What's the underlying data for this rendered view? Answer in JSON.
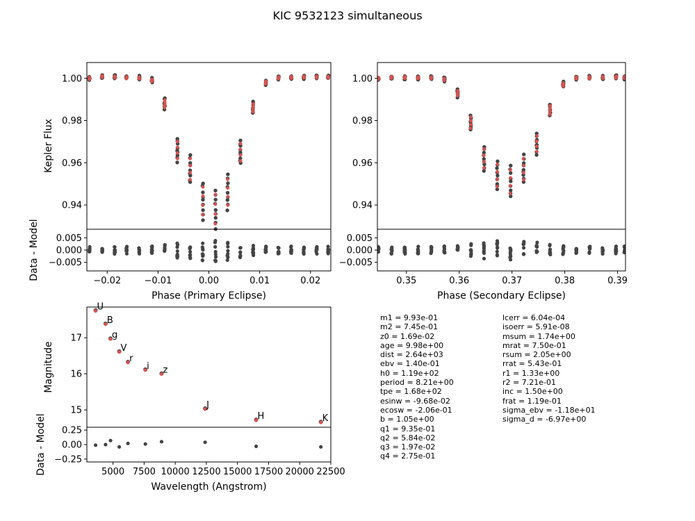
{
  "figure": {
    "title": "KIC 9532123 simultaneous"
  },
  "colors": {
    "data": "#444444",
    "model": "#d9534f",
    "axis": "#000000"
  },
  "chart_data": [
    {
      "id": "primary",
      "type": "scatter",
      "title": "",
      "xlabel": "Phase (Primary Eclipse)",
      "ylabel": "Kepler Flux",
      "resid_ylabel": "Data - Model",
      "xlim": [
        -0.024,
        0.024
      ],
      "ylim": [
        0.9285,
        1.0075
      ],
      "resid_ylim": [
        -0.0085,
        0.0085
      ],
      "xticks": [
        -0.02,
        -0.01,
        0.0,
        0.01,
        0.02
      ],
      "xtick_labels": [
        "−0.02",
        "−0.01",
        "0.00",
        "0.01",
        "0.02"
      ],
      "yticks": [
        0.94,
        0.96,
        0.98,
        1.0
      ],
      "ytick_labels": [
        "0.94",
        "0.96",
        "0.98",
        "1.00"
      ],
      "resid_yticks": [
        -0.005,
        0.0,
        0.005
      ],
      "resid_ytick_labels": [
        "−0.005",
        "0.000",
        "0.005"
      ],
      "series": [
        {
          "values_x": [
            -0.0235,
            -0.021,
            -0.0185,
            -0.0162,
            -0.0137,
            -0.0112,
            -0.0087,
            -0.0062,
            -0.0037,
            -0.0012,
            0.0013,
            0.0037,
            0.0062,
            0.0087,
            0.0112,
            0.0137,
            0.0162,
            0.0187,
            0.0212,
            0.0235
          ],
          "values_y": [
            1.0,
            1.0008,
            1.0006,
            1.0003,
            1.0002,
            0.999,
            0.988,
            0.966,
            0.957,
            0.942,
            0.938,
            0.946,
            0.965,
            0.986,
            0.998,
            1.0002,
            1.0004,
            1.0006,
            1.0006,
            1.0006
          ]
        }
      ]
    },
    {
      "id": "secondary",
      "type": "scatter",
      "title": "",
      "xlabel": "Phase (Secondary Eclipse)",
      "ylabel": "",
      "resid_ylabel": "",
      "xlim": [
        0.3445,
        0.3915
      ],
      "ylim": [
        0.9285,
        1.0075
      ],
      "resid_ylim": [
        -0.0085,
        0.0085
      ],
      "xticks": [
        0.35,
        0.36,
        0.37,
        0.38,
        0.39
      ],
      "xtick_labels": [
        "0.35",
        "0.36",
        "0.37",
        "0.38",
        "0.39"
      ],
      "yticks": [
        0.94,
        0.96,
        0.98,
        1.0
      ],
      "ytick_labels": [
        "0.94",
        "0.96",
        "0.98",
        "1.00"
      ],
      "resid_yticks": [
        -0.005,
        0.0,
        0.005
      ],
      "resid_ytick_labels": [
        "−0.005",
        "0.000",
        "0.005"
      ],
      "series": [
        {
          "values_x": [
            0.3447,
            0.3472,
            0.3497,
            0.3522,
            0.3547,
            0.3572,
            0.3597,
            0.3622,
            0.3647,
            0.3672,
            0.3697,
            0.3722,
            0.3747,
            0.3772,
            0.3797,
            0.3822,
            0.3847,
            0.3872,
            0.3897,
            0.3913
          ],
          "values_y": [
            1.0,
            1.0004,
            1.0004,
            1.0003,
            1.0002,
            0.9995,
            0.993,
            0.979,
            0.962,
            0.954,
            0.951,
            0.957,
            0.969,
            0.985,
            0.997,
            1.0002,
            1.0003,
            1.0004,
            1.0006,
            1.0004
          ]
        }
      ]
    },
    {
      "id": "sed",
      "type": "scatter",
      "title": "",
      "xlabel": "Wavelength (Angstrom)",
      "ylabel": "Magnitude",
      "resid_ylabel": "Data - Model",
      "xlim": [
        2900,
        22500
      ],
      "ylim": [
        14.52,
        17.85
      ],
      "resid_ylim": [
        -0.3,
        0.3
      ],
      "xticks": [
        5000,
        7500,
        10000,
        12500,
        15000,
        17500,
        20000,
        22500
      ],
      "xtick_labels": [
        "5000",
        "7500",
        "10000",
        "12500",
        "15000",
        "17500",
        "20000",
        "22500"
      ],
      "yticks": [
        15,
        16,
        17
      ],
      "ytick_labels": [
        "15",
        "16",
        "17"
      ],
      "resid_yticks": [
        -0.25,
        0.0,
        0.25
      ],
      "resid_ytick_labels": [
        "−0.25",
        "0.00",
        "0.25"
      ],
      "series": [
        {
          "name": "",
          "labels": [
            "U",
            "B",
            "g",
            "V",
            "r",
            "i",
            "z",
            "J",
            "H",
            "K"
          ],
          "values_x": [
            3600,
            4400,
            4800,
            5500,
            6200,
            7600,
            8900,
            12400,
            16500,
            21700
          ],
          "values_y": [
            17.76,
            17.39,
            16.98,
            16.62,
            16.33,
            16.12,
            16.01,
            15.04,
            14.73,
            14.67
          ],
          "resid": [
            -0.01,
            0.0,
            0.07,
            -0.04,
            0.02,
            0.01,
            0.05,
            0.04,
            -0.03,
            -0.04
          ]
        }
      ]
    }
  ],
  "params_left": [
    "m1 = 9.93e-01",
    "m2 = 7.45e-01",
    "z0 = 1.69e-02",
    "age = 9.98e+00",
    "dist = 2.64e+03",
    "ebv = 1.40e-01",
    "h0 = 1.19e+02",
    "period = 8.21e+00",
    "tpe = 1.68e+02",
    "esinw = -9.68e-02",
    "ecosw = -2.06e-01",
    "b = 1.05e+00",
    "q1 = 9.35e-01",
    "q2 = 5.84e-02",
    "q3 = 1.97e-02",
    "q4 = 2.75e-01"
  ],
  "params_right": [
    "lcerr = 6.04e-04",
    "isoerr = 5.91e-08",
    "msum = 1.74e+00",
    "mrat = 7.50e-01",
    "rsum = 2.05e+00",
    "rrat = 5.43e-01",
    "r1 = 1.33e+00",
    "r2 = 7.21e-01",
    "inc = 1.50e+00",
    "frat = 1.19e-01",
    "sigma_ebv = -1.18e+01",
    "sigma_d = -6.97e+00"
  ]
}
